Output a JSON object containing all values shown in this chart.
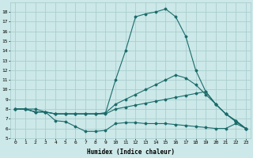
{
  "xlabel": "Humidex (Indice chaleur)",
  "ylabel": "",
  "bg_color": "#cce8e8",
  "grid_color": "#aacece",
  "line_color": "#1a6b6b",
  "xlim": [
    -0.5,
    23.5
  ],
  "ylim": [
    5,
    19
  ],
  "yticks": [
    5,
    6,
    7,
    8,
    9,
    10,
    11,
    12,
    13,
    14,
    15,
    16,
    17,
    18
  ],
  "xticks": [
    0,
    1,
    2,
    3,
    4,
    5,
    6,
    7,
    8,
    9,
    10,
    11,
    12,
    13,
    14,
    15,
    16,
    17,
    18,
    19,
    20,
    21,
    22,
    23
  ],
  "series": [
    {
      "x": [
        0,
        1,
        2,
        3,
        4,
        5,
        6,
        7,
        8,
        9,
        10,
        11,
        12,
        13,
        14,
        15,
        16,
        17,
        18,
        19,
        20,
        21,
        22,
        23
      ],
      "y": [
        8.0,
        8.0,
        8.0,
        7.7,
        6.8,
        6.7,
        6.2,
        5.7,
        5.7,
        5.8,
        6.5,
        6.6,
        6.6,
        6.5,
        6.5,
        6.5,
        6.4,
        6.3,
        6.2,
        6.1,
        6.0,
        6.0,
        6.5,
        6.0
      ]
    },
    {
      "x": [
        0,
        1,
        2,
        3,
        4,
        5,
        6,
        7,
        8,
        9,
        10,
        11,
        12,
        13,
        14,
        15,
        16,
        17,
        18,
        19,
        20,
        21,
        22,
        23
      ],
      "y": [
        8.0,
        8.0,
        7.7,
        7.7,
        7.5,
        7.5,
        7.5,
        7.5,
        7.5,
        7.5,
        8.0,
        8.2,
        8.4,
        8.6,
        8.8,
        9.0,
        9.2,
        9.4,
        9.6,
        9.8,
        8.5,
        7.5,
        6.8,
        6.0
      ]
    },
    {
      "x": [
        0,
        1,
        2,
        3,
        4,
        5,
        6,
        7,
        8,
        9,
        10,
        11,
        12,
        13,
        14,
        15,
        16,
        17,
        18,
        19,
        20,
        21,
        22,
        23
      ],
      "y": [
        8.0,
        8.0,
        7.7,
        7.7,
        7.5,
        7.5,
        7.5,
        7.5,
        7.5,
        7.6,
        8.5,
        9.0,
        9.5,
        10.0,
        10.5,
        11.0,
        11.5,
        11.2,
        10.5,
        9.5,
        8.5,
        7.5,
        6.8,
        6.0
      ]
    },
    {
      "x": [
        0,
        1,
        2,
        3,
        4,
        5,
        6,
        7,
        8,
        9,
        10,
        11,
        12,
        13,
        14,
        15,
        16,
        17,
        18,
        19,
        20,
        21,
        22,
        23
      ],
      "y": [
        8.0,
        8.0,
        7.7,
        7.7,
        7.5,
        7.5,
        7.5,
        7.5,
        7.5,
        7.6,
        11.0,
        14.0,
        17.5,
        17.8,
        18.0,
        18.3,
        17.5,
        15.5,
        12.0,
        9.8,
        8.5,
        7.5,
        6.7,
        6.0
      ]
    }
  ]
}
